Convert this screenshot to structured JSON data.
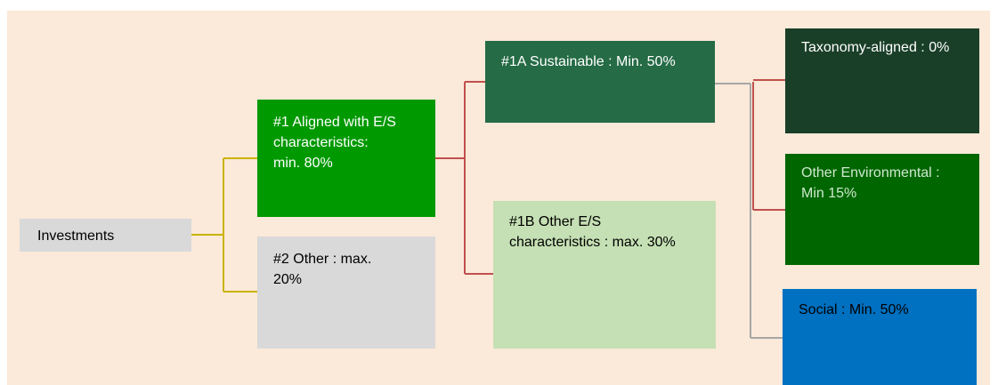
{
  "nodes": [
    {
      "label": "Investments"
    },
    {
      "label": "#1 Aligned with E/S characteristics: min. 80%"
    },
    {
      "label": "#2 Other : max. 20%"
    },
    {
      "label": "#1A Sustainable : Min. 50%"
    },
    {
      "label": "#1B Other E/S characteristics : max. 30%"
    },
    {
      "label": "Taxonomy-aligned : 0%"
    },
    {
      "label": "Other Environmental : Min 15%"
    },
    {
      "label": "Social : Min. 50%"
    }
  ]
}
